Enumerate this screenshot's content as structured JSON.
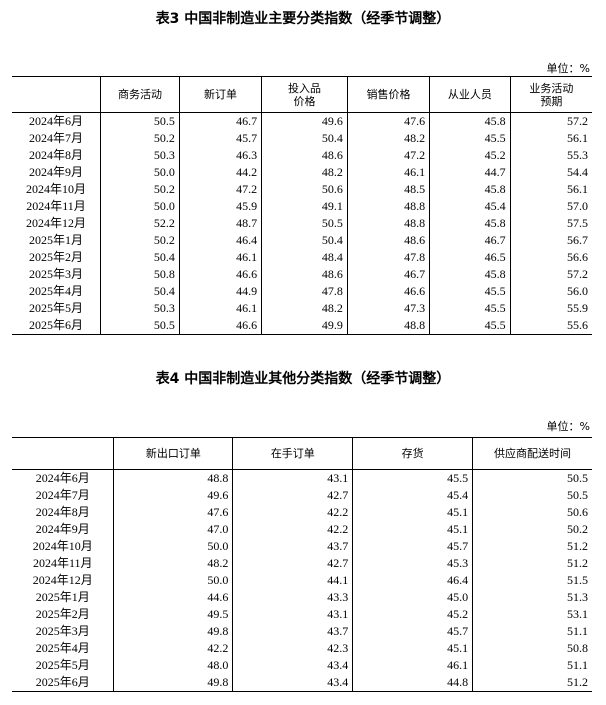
{
  "table3": {
    "title": "表3 中国非制造业主要分类指数（经季节调整）",
    "unit": "单位：%",
    "columns": [
      "",
      "商务活动",
      "新订单",
      "投入品\n价格",
      "销售价格",
      "从业人员",
      "业务活动\n预期"
    ],
    "rows": [
      [
        "2024年6月",
        "50.5",
        "46.7",
        "49.6",
        "47.6",
        "45.8",
        "57.2"
      ],
      [
        "2024年7月",
        "50.2",
        "45.7",
        "50.4",
        "48.2",
        "45.5",
        "56.1"
      ],
      [
        "2024年8月",
        "50.3",
        "46.3",
        "48.6",
        "47.2",
        "45.2",
        "55.3"
      ],
      [
        "2024年9月",
        "50.0",
        "44.2",
        "48.2",
        "46.1",
        "44.7",
        "54.4"
      ],
      [
        "2024年10月",
        "50.2",
        "47.2",
        "50.6",
        "48.5",
        "45.8",
        "56.1"
      ],
      [
        "2024年11月",
        "50.0",
        "45.9",
        "49.1",
        "48.8",
        "45.4",
        "57.0"
      ],
      [
        "2024年12月",
        "52.2",
        "48.7",
        "50.5",
        "48.8",
        "45.8",
        "57.5"
      ],
      [
        "2025年1月",
        "50.2",
        "46.4",
        "50.4",
        "48.6",
        "46.7",
        "56.7"
      ],
      [
        "2025年2月",
        "50.4",
        "46.1",
        "48.4",
        "47.8",
        "46.5",
        "56.6"
      ],
      [
        "2025年3月",
        "50.8",
        "46.6",
        "48.6",
        "46.7",
        "45.8",
        "57.2"
      ],
      [
        "2025年4月",
        "50.4",
        "44.9",
        "47.8",
        "46.6",
        "45.5",
        "56.0"
      ],
      [
        "2025年5月",
        "50.3",
        "46.1",
        "48.2",
        "47.3",
        "45.5",
        "55.9"
      ],
      [
        "2025年6月",
        "50.5",
        "46.6",
        "49.9",
        "48.8",
        "45.5",
        "55.6"
      ]
    ]
  },
  "table4": {
    "title": "表4 中国非制造业其他分类指数（经季节调整）",
    "unit": "单位：%",
    "columns": [
      "",
      "新出口订单",
      "在手订单",
      "存货",
      "供应商配送时间"
    ],
    "rows": [
      [
        "2024年6月",
        "48.8",
        "43.1",
        "45.5",
        "50.5"
      ],
      [
        "2024年7月",
        "49.6",
        "42.7",
        "45.4",
        "50.5"
      ],
      [
        "2024年8月",
        "47.6",
        "42.2",
        "45.1",
        "50.6"
      ],
      [
        "2024年9月",
        "47.0",
        "42.2",
        "45.1",
        "50.2"
      ],
      [
        "2024年10月",
        "50.0",
        "43.7",
        "45.7",
        "51.2"
      ],
      [
        "2024年11月",
        "48.2",
        "42.7",
        "45.3",
        "51.2"
      ],
      [
        "2024年12月",
        "50.0",
        "44.1",
        "46.4",
        "51.5"
      ],
      [
        "2025年1月",
        "44.6",
        "43.3",
        "45.0",
        "51.3"
      ],
      [
        "2025年2月",
        "49.5",
        "43.1",
        "45.2",
        "53.1"
      ],
      [
        "2025年3月",
        "49.8",
        "43.7",
        "45.7",
        "51.1"
      ],
      [
        "2025年4月",
        "42.2",
        "42.3",
        "45.1",
        "50.8"
      ],
      [
        "2025年5月",
        "48.0",
        "43.4",
        "46.1",
        "51.1"
      ],
      [
        "2025年6月",
        "49.8",
        "43.4",
        "44.8",
        "51.2"
      ]
    ]
  }
}
